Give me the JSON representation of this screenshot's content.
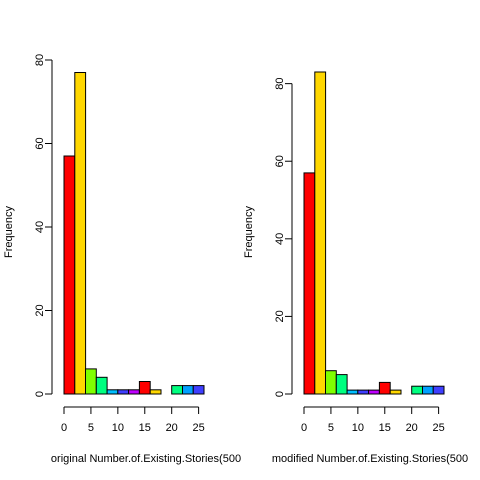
{
  "chart_data": [
    {
      "type": "bar",
      "subtype": "histogram",
      "xlabel": "original Number.of.Existing.Stories(500",
      "ylabel": "Frequency",
      "xlim": [
        0,
        25
      ],
      "ylim": [
        0,
        80
      ],
      "x_ticks": [
        0,
        5,
        10,
        15,
        20,
        25
      ],
      "y_ticks": [
        0,
        20,
        40,
        60,
        80
      ],
      "bins": [
        [
          0,
          2
        ],
        [
          2,
          4
        ],
        [
          4,
          6
        ],
        [
          6,
          8
        ],
        [
          8,
          10
        ],
        [
          10,
          12
        ],
        [
          12,
          14
        ],
        [
          14,
          16
        ],
        [
          16,
          18
        ],
        [
          18,
          20
        ],
        [
          20,
          22
        ],
        [
          22,
          24
        ],
        [
          24,
          26
        ]
      ],
      "values": [
        57,
        77,
        6,
        4,
        1,
        1,
        1,
        3,
        1,
        0,
        2,
        2,
        2
      ]
    },
    {
      "type": "bar",
      "subtype": "histogram",
      "xlabel": "modified Number.of.Existing.Stories(500",
      "ylabel": "Frequency",
      "xlim": [
        0,
        25
      ],
      "ylim": [
        0,
        80
      ],
      "x_ticks": [
        0,
        5,
        10,
        15,
        20,
        25
      ],
      "y_ticks": [
        0,
        20,
        40,
        60,
        80
      ],
      "bins": [
        [
          0,
          2
        ],
        [
          2,
          4
        ],
        [
          4,
          6
        ],
        [
          6,
          8
        ],
        [
          8,
          10
        ],
        [
          10,
          12
        ],
        [
          12,
          14
        ],
        [
          14,
          16
        ],
        [
          16,
          18
        ],
        [
          18,
          20
        ],
        [
          20,
          22
        ],
        [
          22,
          24
        ],
        [
          24,
          26
        ]
      ],
      "values": [
        57,
        83,
        6,
        5,
        1,
        1,
        1,
        3,
        1,
        0,
        2,
        2,
        2
      ]
    }
  ],
  "colors": [
    "#FF0000",
    "#FFD700",
    "#7FFF00",
    "#00FF7F",
    "#00BFFF",
    "#3F3FFF",
    "#BF00FF",
    "#FF0000",
    "#FFD700",
    "#7FFF00",
    "#00FF7F",
    "#00A0FF",
    "#3F3FFF"
  ]
}
